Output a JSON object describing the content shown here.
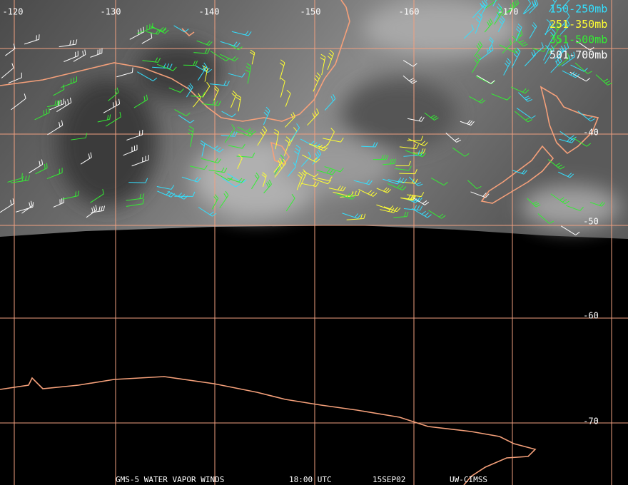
{
  "map": {
    "longitude_labels": [
      "-120",
      "-130",
      "-140",
      "-150",
      "-160",
      "-170"
    ],
    "latitude_labels": [
      "-40",
      "-50",
      "-60",
      "-70"
    ],
    "legend": [
      {
        "label": "150-250mb",
        "color": "#33e0ff"
      },
      {
        "label": "251-350mb",
        "color": "#ffff33"
      },
      {
        "label": "351-500mb",
        "color": "#33ee33"
      },
      {
        "label": "501-700mb",
        "color": "#ffffff"
      }
    ],
    "footer": [
      "GMS-5 WATER VAPOR WINDS",
      "18:00 UTC",
      "15SEP02",
      "UW-CIMSS"
    ]
  }
}
